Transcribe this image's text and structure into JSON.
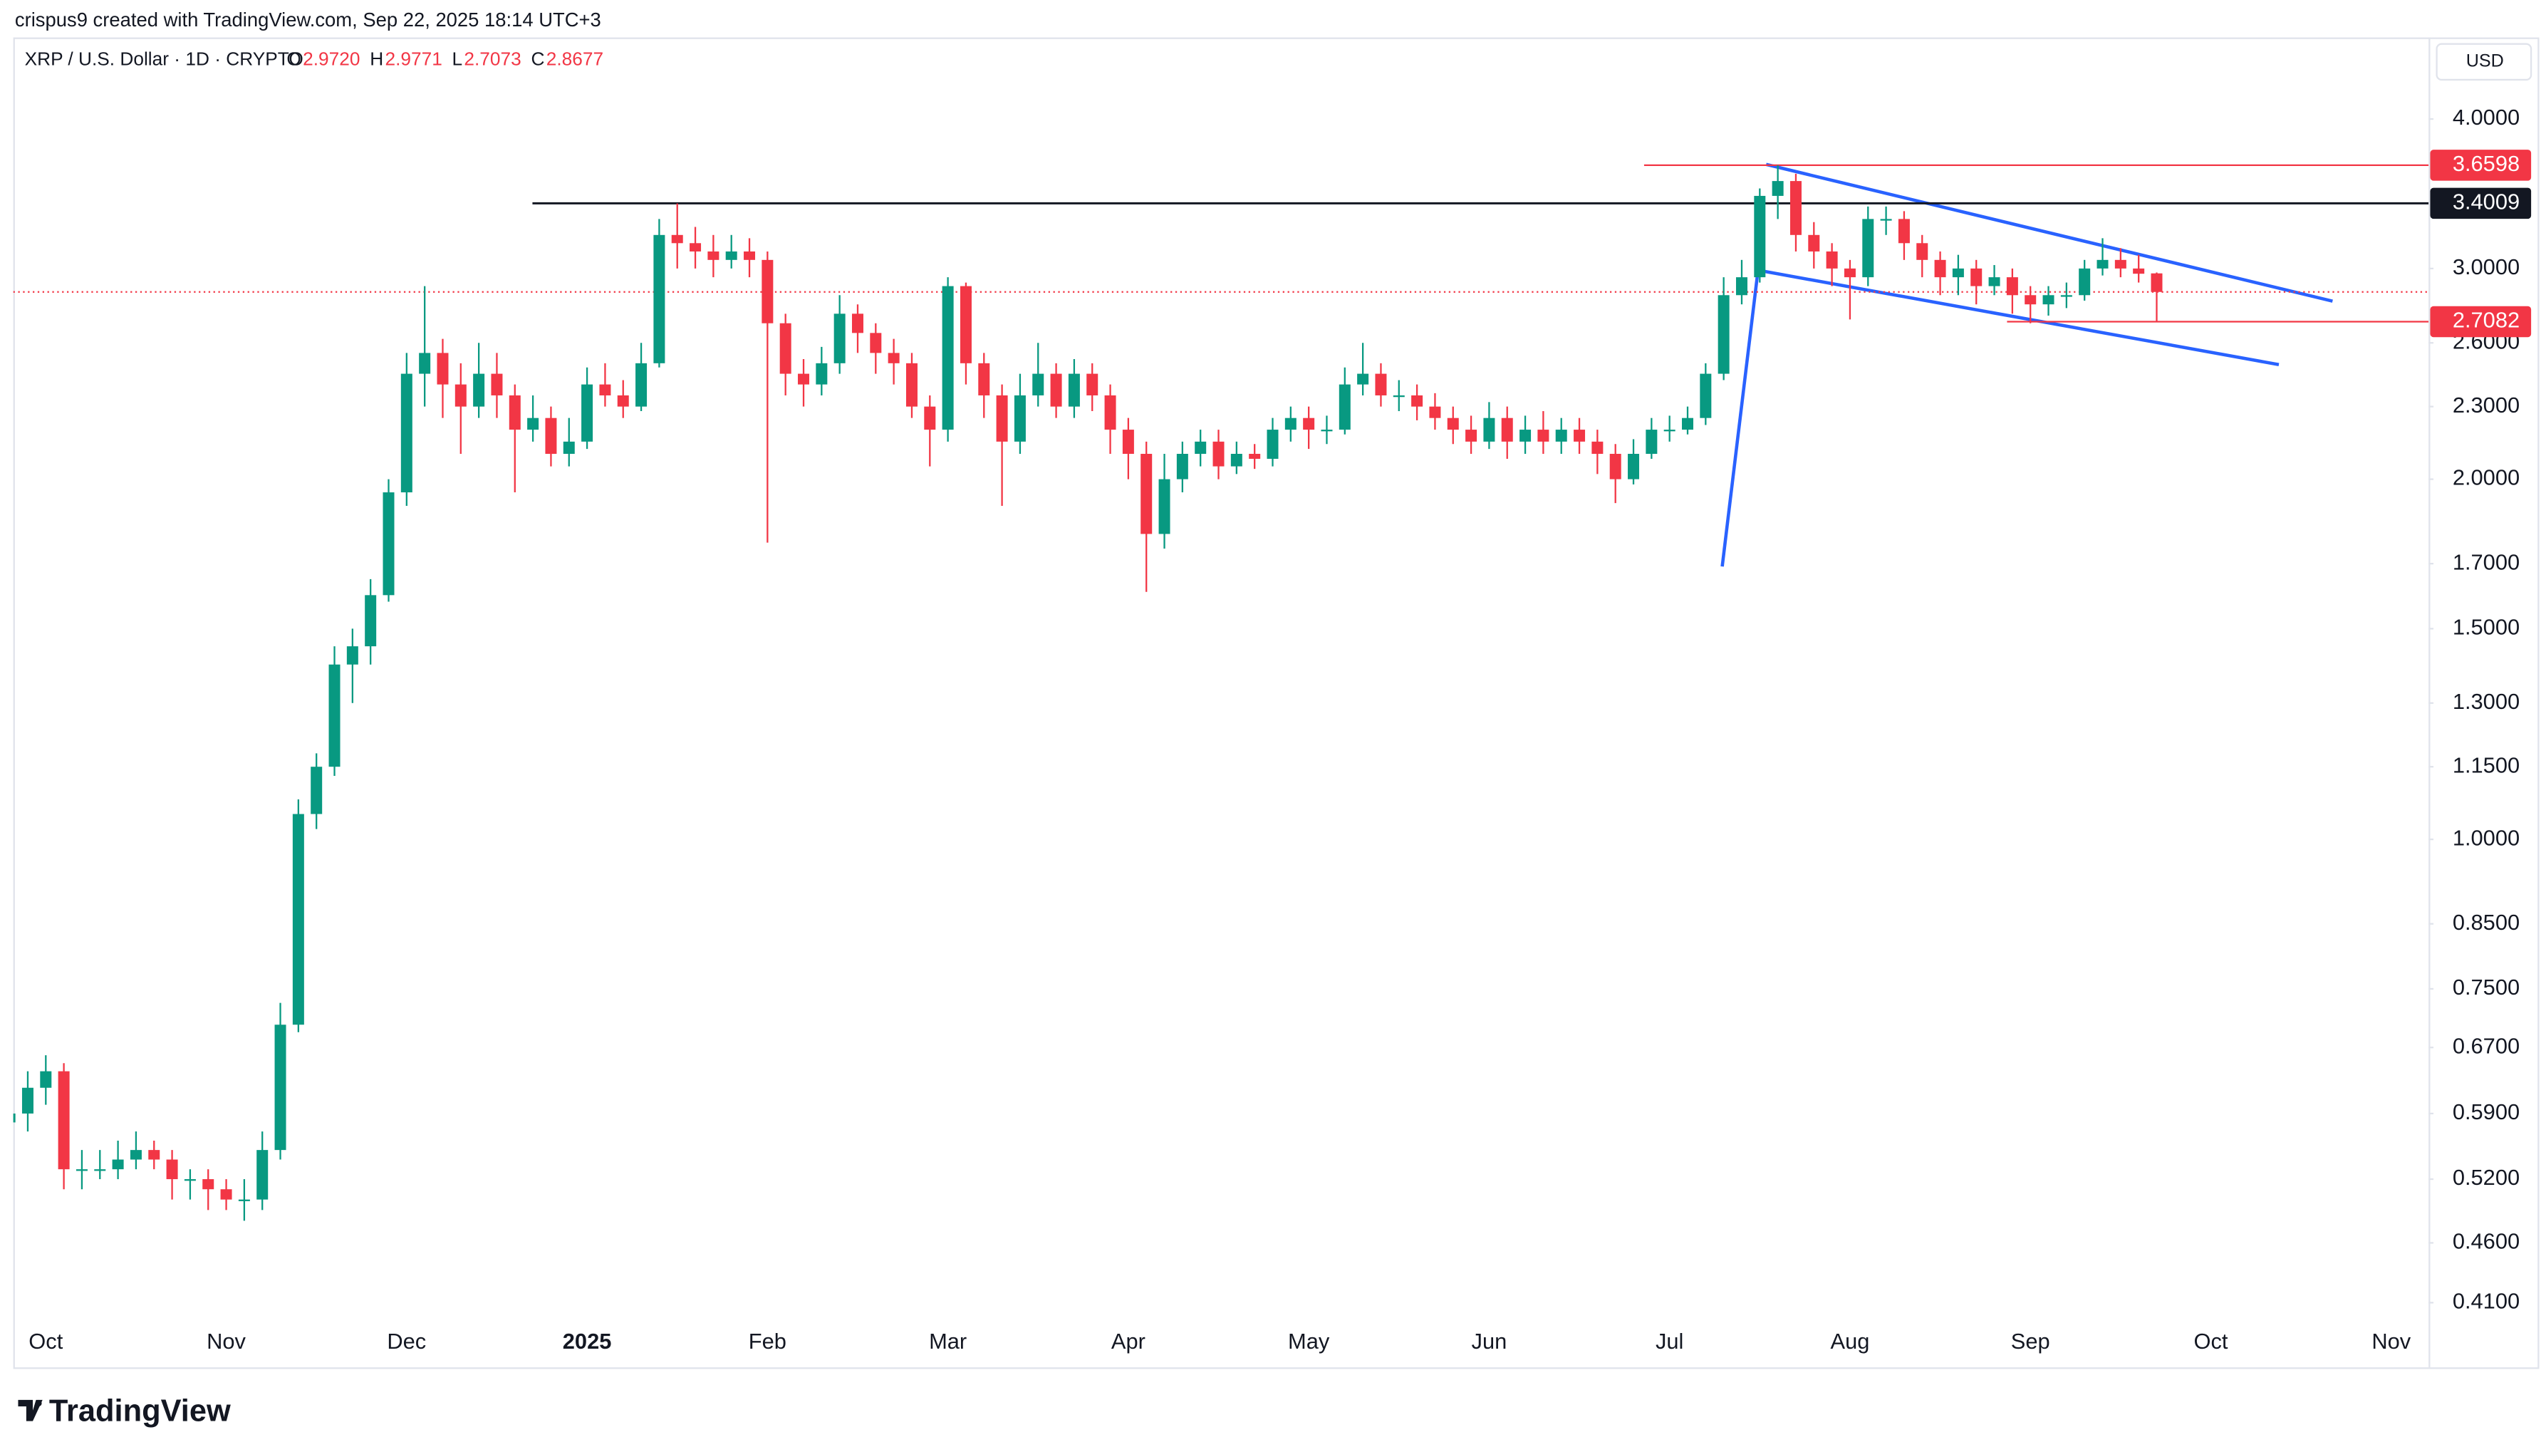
{
  "header": {
    "credit": "crispus9 created with TradingView.com, Sep 22, 2025 18:14 UTC+3",
    "symbol": "XRP / U.S. Dollar · 1D · CRYPTO",
    "ohlc": [
      {
        "key": "O",
        "value": "2.9720"
      },
      {
        "key": "H",
        "value": "2.9771"
      },
      {
        "key": "L",
        "value": "2.7073"
      },
      {
        "key": "C",
        "value": "2.8677"
      }
    ],
    "currency": "USD"
  },
  "chart_data": {
    "type": "candlestick",
    "log_scale": true,
    "up_color": "#089981",
    "down_color": "#f23645",
    "categories": [
      null,
      null,
      "Oct",
      null,
      null,
      null,
      null,
      null,
      null,
      null,
      null,
      null,
      "Nov",
      null,
      null,
      null,
      null,
      null,
      null,
      null,
      null,
      null,
      "Dec",
      null,
      null,
      null,
      null,
      null,
      null,
      null,
      null,
      null,
      "2025",
      null,
      null,
      null,
      null,
      null,
      null,
      null,
      null,
      null,
      "Feb",
      null,
      null,
      null,
      null,
      null,
      null,
      null,
      null,
      null,
      "Mar",
      null,
      null,
      null,
      null,
      null,
      null,
      null,
      null,
      null,
      "Apr",
      null,
      null,
      null,
      null,
      null,
      null,
      null,
      null,
      null,
      "May",
      null,
      null,
      null,
      null,
      null,
      null,
      null,
      null,
      null,
      "Jun",
      null,
      null,
      null,
      null,
      null,
      null,
      null,
      null,
      null,
      "Jul",
      null,
      null,
      null,
      null,
      null,
      null,
      null,
      null,
      null,
      "Aug",
      null,
      null,
      null,
      null,
      null,
      null,
      null,
      null,
      null,
      "Sep",
      null,
      null,
      null,
      null,
      null,
      null,
      null,
      null,
      null,
      "Oct",
      null,
      null,
      null,
      null,
      null,
      null,
      null,
      null,
      null,
      "Nov",
      null,
      null
    ],
    "open": [
      0.58,
      0.59,
      0.62,
      0.64,
      0.53,
      0.53,
      0.53,
      0.54,
      0.55,
      0.54,
      0.52,
      0.52,
      0.51,
      0.5,
      0.5,
      0.55,
      0.7,
      1.05,
      1.15,
      1.4,
      1.45,
      1.6,
      1.95,
      2.45,
      2.55,
      2.4,
      2.3,
      2.45,
      2.35,
      2.2,
      2.25,
      2.1,
      2.15,
      2.4,
      2.35,
      2.3,
      2.5,
      3.2,
      3.15,
      3.1,
      3.05,
      3.1,
      3.05,
      2.7,
      2.45,
      2.4,
      2.5,
      2.75,
      2.65,
      2.55,
      2.5,
      2.3,
      2.2,
      2.9,
      2.5,
      2.35,
      2.15,
      2.35,
      2.45,
      2.3,
      2.45,
      2.35,
      2.2,
      2.1,
      1.8,
      2.0,
      2.1,
      2.15,
      2.05,
      2.1,
      2.08,
      2.2,
      2.25,
      2.2,
      2.2,
      2.4,
      2.45,
      2.35,
      2.35,
      2.3,
      2.25,
      2.2,
      2.15,
      2.25,
      2.15,
      2.2,
      2.15,
      2.2,
      2.15,
      2.1,
      2.0,
      2.1,
      2.2,
      2.2,
      2.25,
      2.45,
      2.85,
      2.95,
      3.45,
      3.55,
      3.2,
      3.1,
      3.0,
      2.95,
      3.3,
      3.3,
      3.15,
      3.05,
      2.95,
      3.0,
      2.9,
      2.95,
      2.85,
      2.8,
      2.85,
      2.85,
      3.0,
      3.05,
      3.0,
      2.972,
      null,
      null,
      null,
      null,
      null,
      null,
      null,
      null,
      null,
      null,
      null,
      null,
      null,
      null,
      null
    ],
    "high": [
      0.61,
      0.64,
      0.66,
      0.65,
      0.55,
      0.55,
      0.56,
      0.57,
      0.56,
      0.55,
      0.53,
      0.53,
      0.52,
      0.52,
      0.57,
      0.73,
      1.08,
      1.18,
      1.45,
      1.5,
      1.65,
      2.0,
      2.55,
      2.9,
      2.62,
      2.5,
      2.6,
      2.55,
      2.4,
      2.35,
      2.3,
      2.25,
      2.48,
      2.5,
      2.42,
      2.6,
      3.3,
      3.4,
      3.25,
      3.2,
      3.2,
      3.18,
      3.1,
      2.75,
      2.52,
      2.58,
      2.85,
      2.8,
      2.7,
      2.62,
      2.55,
      2.35,
      2.95,
      2.92,
      2.55,
      2.4,
      2.45,
      2.6,
      2.5,
      2.52,
      2.5,
      2.4,
      2.25,
      2.15,
      2.1,
      2.15,
      2.2,
      2.2,
      2.15,
      2.14,
      2.25,
      2.3,
      2.3,
      2.26,
      2.48,
      2.6,
      2.5,
      2.42,
      2.4,
      2.36,
      2.3,
      2.26,
      2.32,
      2.3,
      2.26,
      2.28,
      2.25,
      2.25,
      2.2,
      2.14,
      2.16,
      2.25,
      2.26,
      2.3,
      2.5,
      2.95,
      3.05,
      3.5,
      3.66,
      3.6,
      3.28,
      3.15,
      3.05,
      3.38,
      3.38,
      3.35,
      3.2,
      3.1,
      3.08,
      3.05,
      3.02,
      3.0,
      2.9,
      2.9,
      2.92,
      3.05,
      3.18,
      3.12,
      3.08,
      2.9771,
      null,
      null,
      null,
      null,
      null,
      null,
      null,
      null,
      null,
      null,
      null,
      null,
      null,
      null,
      null
    ],
    "low": [
      0.56,
      0.57,
      0.6,
      0.51,
      0.51,
      0.52,
      0.52,
      0.53,
      0.53,
      0.5,
      0.5,
      0.49,
      0.49,
      0.48,
      0.49,
      0.54,
      0.69,
      1.02,
      1.13,
      1.3,
      1.4,
      1.58,
      1.9,
      2.3,
      2.25,
      2.1,
      2.25,
      2.25,
      1.95,
      2.15,
      2.05,
      2.05,
      2.12,
      2.3,
      2.25,
      2.28,
      2.48,
      3.0,
      3.0,
      2.95,
      3.0,
      2.95,
      1.77,
      2.35,
      2.3,
      2.35,
      2.45,
      2.55,
      2.45,
      2.4,
      2.25,
      2.05,
      2.15,
      2.4,
      2.25,
      1.9,
      2.1,
      2.3,
      2.25,
      2.25,
      2.28,
      2.1,
      2.0,
      1.61,
      1.75,
      1.95,
      2.05,
      2.0,
      2.02,
      2.04,
      2.05,
      2.15,
      2.12,
      2.14,
      2.18,
      2.35,
      2.3,
      2.28,
      2.24,
      2.2,
      2.14,
      2.1,
      2.12,
      2.08,
      2.1,
      2.1,
      2.1,
      2.1,
      2.02,
      1.91,
      1.98,
      2.08,
      2.15,
      2.18,
      2.22,
      2.42,
      2.8,
      2.92,
      3.3,
      3.1,
      3.0,
      2.9,
      2.72,
      2.9,
      3.2,
      3.05,
      2.95,
      2.85,
      2.85,
      2.8,
      2.85,
      2.75,
      2.7,
      2.74,
      2.78,
      2.82,
      2.96,
      2.95,
      2.92,
      2.7073,
      null,
      null,
      null,
      null,
      null,
      null,
      null,
      null,
      null,
      null,
      null,
      null,
      null,
      null,
      null
    ],
    "close": [
      0.59,
      0.62,
      0.64,
      0.53,
      0.53,
      0.53,
      0.54,
      0.55,
      0.54,
      0.52,
      0.52,
      0.51,
      0.5,
      0.5,
      0.55,
      0.7,
      1.05,
      1.15,
      1.4,
      1.45,
      1.6,
      1.95,
      2.45,
      2.55,
      2.4,
      2.3,
      2.45,
      2.35,
      2.2,
      2.25,
      2.1,
      2.15,
      2.4,
      2.35,
      2.3,
      2.5,
      3.2,
      3.15,
      3.1,
      3.05,
      3.1,
      3.05,
      2.7,
      2.45,
      2.4,
      2.5,
      2.75,
      2.65,
      2.55,
      2.5,
      2.3,
      2.2,
      2.9,
      2.5,
      2.35,
      2.15,
      2.35,
      2.45,
      2.3,
      2.45,
      2.35,
      2.2,
      2.1,
      1.8,
      2.0,
      2.1,
      2.15,
      2.05,
      2.1,
      2.08,
      2.2,
      2.25,
      2.2,
      2.2,
      2.4,
      2.45,
      2.35,
      2.35,
      2.3,
      2.25,
      2.2,
      2.15,
      2.25,
      2.15,
      2.2,
      2.15,
      2.2,
      2.15,
      2.1,
      2.0,
      2.1,
      2.2,
      2.2,
      2.25,
      2.45,
      2.85,
      2.95,
      3.45,
      3.55,
      3.2,
      3.1,
      3.0,
      2.95,
      3.3,
      3.3,
      3.15,
      3.05,
      2.95,
      3.0,
      2.9,
      2.95,
      2.85,
      2.8,
      2.85,
      2.85,
      3.0,
      3.05,
      3.0,
      2.97,
      2.8677,
      null,
      null,
      null,
      null,
      null,
      null,
      null,
      null,
      null,
      null,
      null,
      null,
      null,
      null,
      null
    ],
    "ylim": [
      0.362,
      4.68
    ],
    "yticks": [
      {
        "value": 4,
        "label": "4.0000"
      },
      {
        "value": 3,
        "label": "3.0000"
      },
      {
        "value": 2.6,
        "label": "2.6000"
      },
      {
        "value": 2.3,
        "label": "2.3000"
      },
      {
        "value": 2,
        "label": "2.0000"
      },
      {
        "value": 1.7,
        "label": "1.7000"
      },
      {
        "value": 1.5,
        "label": "1.5000"
      },
      {
        "value": 1.3,
        "label": "1.3000"
      },
      {
        "value": 1.15,
        "label": "1.1500"
      },
      {
        "value": 1,
        "label": "1.0000"
      },
      {
        "value": 0.85,
        "label": "0.8500"
      },
      {
        "value": 0.75,
        "label": "0.7500"
      },
      {
        "value": 0.67,
        "label": "0.6700"
      },
      {
        "value": 0.59,
        "label": "0.5900"
      },
      {
        "value": 0.52,
        "label": "0.5200"
      },
      {
        "value": 0.46,
        "label": "0.4600"
      },
      {
        "value": 0.41,
        "label": "0.4100"
      }
    ],
    "price_lines": [
      {
        "value": 3.6598,
        "color": "#f23645"
      },
      {
        "value": 3.4009,
        "color": "#131722"
      },
      {
        "value": 2.7082,
        "color": "#f23645"
      }
    ],
    "grid": false
  },
  "footer": {
    "logo": "TradingView"
  }
}
